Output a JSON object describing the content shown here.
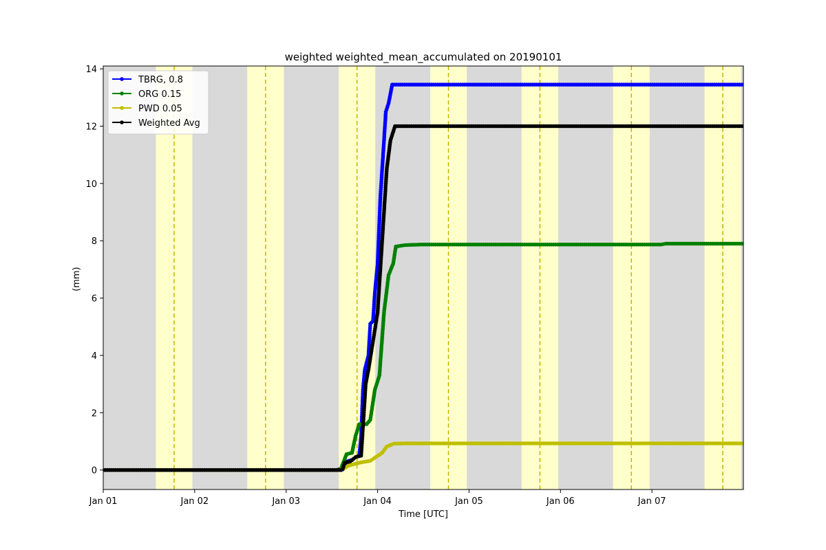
{
  "chart_data": {
    "type": "line",
    "title": "weighted weighted_mean_accumulated on 20190101",
    "xlabel": "Time [UTC]",
    "ylabel": "(mm)",
    "xlim": [
      0,
      7
    ],
    "ylim": [
      -0.68,
      14.1
    ],
    "x_unit": "days",
    "x_ticks": [
      {
        "value": 0,
        "label": "Jan 01"
      },
      {
        "value": 1,
        "label": "Jan 02"
      },
      {
        "value": 2,
        "label": "Jan 03"
      },
      {
        "value": 3,
        "label": "Jan 04"
      },
      {
        "value": 4,
        "label": "Jan 05"
      },
      {
        "value": 5,
        "label": "Jan 06"
      },
      {
        "value": 6,
        "label": "Jan 07"
      }
    ],
    "y_ticks": [
      0,
      2,
      4,
      6,
      8,
      10,
      12,
      14
    ],
    "night_color": "#d9d9d9",
    "day_color": "#ffffcc",
    "noon_line_color": "#c8b400",
    "daylight_bands": [
      [
        0.575,
        0.975
      ],
      [
        1.575,
        1.975
      ],
      [
        2.575,
        2.975
      ],
      [
        3.575,
        3.975
      ],
      [
        4.575,
        4.975
      ],
      [
        5.575,
        5.975
      ],
      [
        6.575,
        6.975
      ]
    ],
    "solar_noon": [
      0.775,
      1.775,
      2.775,
      3.775,
      4.775,
      5.775,
      6.775
    ],
    "legend_position": "top-left",
    "series": [
      {
        "name": "TBRG, 0.8",
        "color": "#0000ff",
        "points": [
          [
            0,
            0
          ],
          [
            2.6,
            0
          ],
          [
            2.62,
            0.02
          ],
          [
            2.64,
            0.18
          ],
          [
            2.66,
            0.3
          ],
          [
            2.72,
            0.35
          ],
          [
            2.76,
            0.45
          ],
          [
            2.8,
            0.5
          ],
          [
            2.82,
            1.2
          ],
          [
            2.84,
            2.8
          ],
          [
            2.86,
            3.5
          ],
          [
            2.9,
            4.0
          ],
          [
            2.92,
            5.1
          ],
          [
            2.95,
            5.2
          ],
          [
            2.97,
            6.2
          ],
          [
            3.0,
            7.2
          ],
          [
            3.03,
            9.5
          ],
          [
            3.06,
            11.0
          ],
          [
            3.09,
            12.5
          ],
          [
            3.12,
            12.8
          ],
          [
            3.16,
            13.45
          ],
          [
            7.0,
            13.45
          ]
        ]
      },
      {
        "name": "ORG 0.15",
        "color": "#008000",
        "points": [
          [
            0,
            0
          ],
          [
            2.55,
            0
          ],
          [
            2.6,
            0.05
          ],
          [
            2.63,
            0.3
          ],
          [
            2.66,
            0.55
          ],
          [
            2.72,
            0.6
          ],
          [
            2.76,
            1.2
          ],
          [
            2.8,
            1.6
          ],
          [
            2.88,
            1.6
          ],
          [
            2.92,
            1.75
          ],
          [
            2.97,
            2.8
          ],
          [
            3.02,
            3.3
          ],
          [
            3.07,
            5.5
          ],
          [
            3.12,
            6.8
          ],
          [
            3.17,
            7.2
          ],
          [
            3.2,
            7.8
          ],
          [
            3.3,
            7.85
          ],
          [
            3.5,
            7.87
          ],
          [
            6.1,
            7.87
          ],
          [
            6.15,
            7.9
          ],
          [
            7.0,
            7.9
          ]
        ]
      },
      {
        "name": "PWD 0.05",
        "color": "#bfbf00",
        "points": [
          [
            0,
            0
          ],
          [
            2.58,
            0
          ],
          [
            2.63,
            0.05
          ],
          [
            2.68,
            0.15
          ],
          [
            2.76,
            0.22
          ],
          [
            2.84,
            0.28
          ],
          [
            2.92,
            0.32
          ],
          [
            2.98,
            0.45
          ],
          [
            3.05,
            0.6
          ],
          [
            3.1,
            0.82
          ],
          [
            3.18,
            0.92
          ],
          [
            3.3,
            0.93
          ],
          [
            7.0,
            0.93
          ]
        ]
      },
      {
        "name": "Weighted Avg",
        "color": "#000000",
        "points": [
          [
            0,
            0
          ],
          [
            2.6,
            0
          ],
          [
            2.62,
            0.05
          ],
          [
            2.64,
            0.25
          ],
          [
            2.7,
            0.3
          ],
          [
            2.76,
            0.45
          ],
          [
            2.82,
            0.5
          ],
          [
            2.84,
            1.5
          ],
          [
            2.87,
            3.0
          ],
          [
            2.9,
            3.5
          ],
          [
            2.95,
            4.5
          ],
          [
            3.0,
            5.5
          ],
          [
            3.05,
            8.0
          ],
          [
            3.1,
            10.5
          ],
          [
            3.14,
            11.5
          ],
          [
            3.19,
            12.0
          ],
          [
            7.0,
            12.0
          ]
        ]
      }
    ]
  }
}
